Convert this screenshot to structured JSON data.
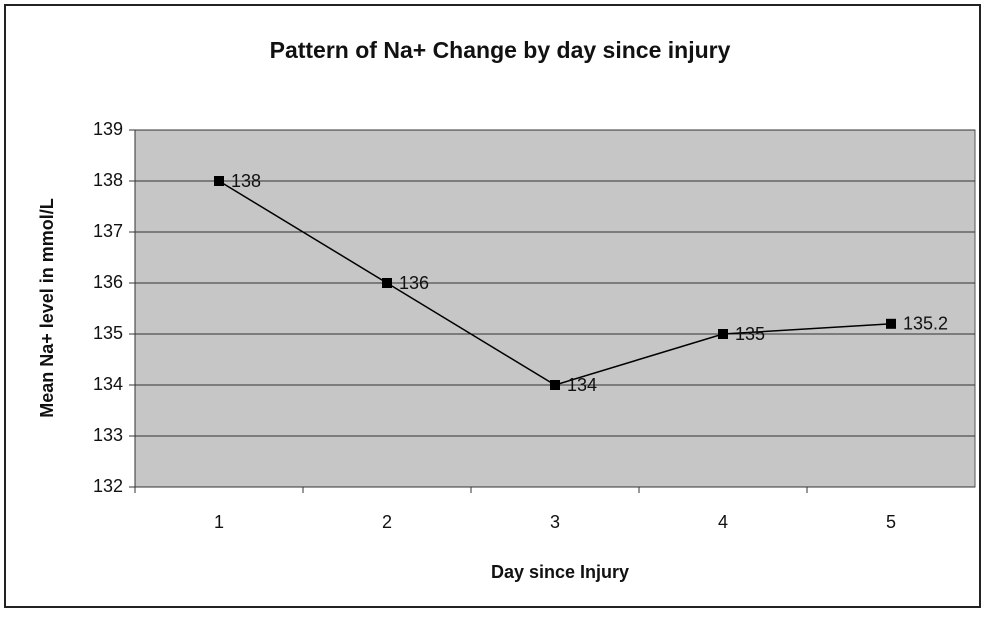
{
  "chart_data": {
    "type": "line",
    "title": "Pattern of Na+ Change by day since injury",
    "x_label": "Day since Injury",
    "y_label": "Mean Na+ level in mmol/L",
    "categories": [
      "1",
      "2",
      "3",
      "4",
      "5"
    ],
    "values": [
      138,
      136,
      134,
      135,
      135.2
    ],
    "color": "#000000",
    "ylim": [
      132,
      139
    ],
    "yticks": [
      132,
      133,
      134,
      135,
      136,
      137,
      138,
      139
    ],
    "grid": true
  }
}
